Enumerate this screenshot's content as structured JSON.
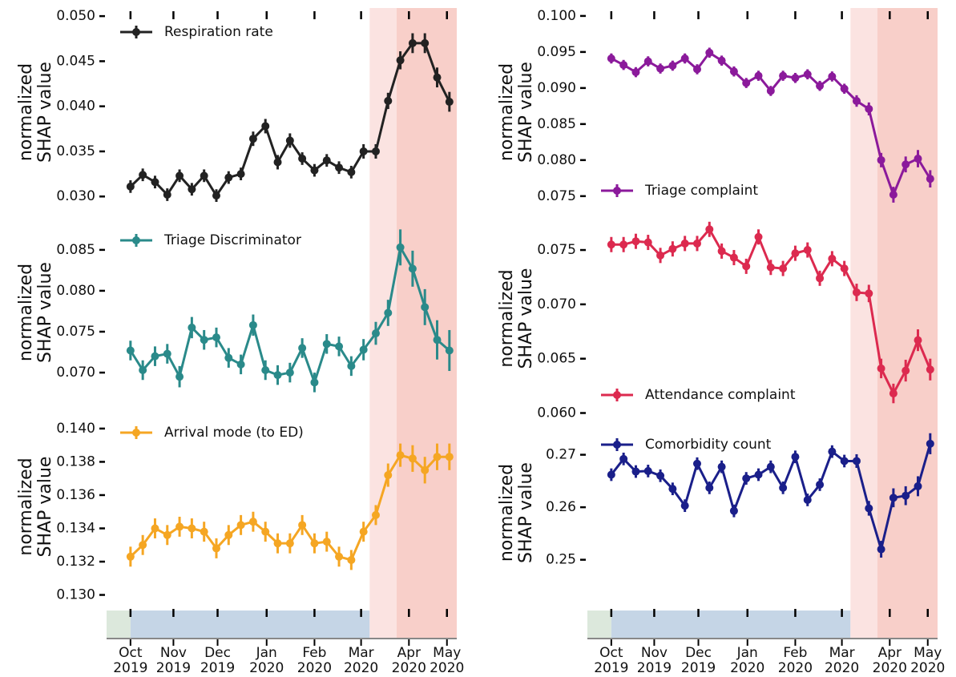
{
  "chart_data": [
    {
      "type": "line",
      "ylabel": "normalized SHAP value",
      "legend": "upper left",
      "x": [
        0,
        1,
        2,
        3,
        4,
        5,
        6,
        7,
        8,
        9,
        10,
        11,
        12,
        13,
        14,
        15,
        16,
        17,
        18,
        19,
        20,
        21,
        22,
        23,
        24,
        25,
        26
      ],
      "ylim": [
        0.0278,
        0.0509
      ],
      "yticks": [
        {
          "value": 0.03,
          "label": "0.030"
        },
        0.035,
        {
          "value": 0.04,
          "label": "0.040"
        },
        0.045,
        {
          "value": 0.05,
          "label": "0.050"
        }
      ],
      "series": [
        {
          "name": "Respiration rate",
          "color": "#222222",
          "values": [
            0.0311,
            0.0324,
            0.0316,
            0.0302,
            0.0323,
            0.0308,
            0.0323,
            0.0301,
            0.0321,
            0.0325,
            0.0364,
            0.0378,
            0.0338,
            0.0362,
            0.0342,
            0.0329,
            0.034,
            0.0332,
            0.0327,
            0.035,
            0.035,
            0.0406,
            0.0451,
            0.047,
            0.047,
            0.0432,
            0.0405
          ],
          "errors": [
            0.0007,
            0.0007,
            0.0007,
            0.0007,
            0.0007,
            0.0007,
            0.0007,
            0.0007,
            0.0007,
            0.0007,
            0.0008,
            0.0008,
            0.0008,
            0.0008,
            0.0007,
            0.0007,
            0.0007,
            0.0007,
            0.0007,
            0.0008,
            0.0008,
            0.0009,
            0.001,
            0.0011,
            0.0011,
            0.0011,
            0.0011
          ]
        }
      ]
    },
    {
      "type": "line",
      "ylabel": "normalized SHAP value",
      "legend": "upper left",
      "x": [
        0,
        1,
        2,
        3,
        4,
        5,
        6,
        7,
        8,
        9,
        10,
        11,
        12,
        13,
        14,
        15,
        16,
        17,
        18,
        19,
        20,
        21,
        22,
        23,
        24,
        25,
        26
      ],
      "ylim": [
        0.0656,
        0.0891
      ],
      "yticks": [
        {
          "value": 0.07,
          "label": "0.070"
        },
        0.075,
        {
          "value": 0.08,
          "label": "0.080"
        },
        0.085
      ],
      "series": [
        {
          "name": "Triage Discriminator",
          "color": "#2a8a8a",
          "values": [
            0.0727,
            0.0703,
            0.072,
            0.0723,
            0.0695,
            0.0755,
            0.074,
            0.0743,
            0.0718,
            0.071,
            0.0758,
            0.0703,
            0.0697,
            0.07,
            0.073,
            0.0688,
            0.0735,
            0.0732,
            0.0708,
            0.0728,
            0.0748,
            0.0773,
            0.0853,
            0.0827,
            0.078,
            0.074,
            0.0727
          ],
          "errors": [
            0.0012,
            0.0012,
            0.0012,
            0.0012,
            0.0013,
            0.0013,
            0.0012,
            0.0012,
            0.0012,
            0.0012,
            0.0013,
            0.0012,
            0.0012,
            0.0012,
            0.0012,
            0.0012,
            0.0012,
            0.0012,
            0.0012,
            0.0013,
            0.0014,
            0.0016,
            0.0022,
            0.0022,
            0.0022,
            0.0024,
            0.0025
          ]
        }
      ]
    },
    {
      "type": "line",
      "ylabel": "normalized SHAP value",
      "legend": "upper left",
      "x": [
        0,
        1,
        2,
        3,
        4,
        5,
        6,
        7,
        8,
        9,
        10,
        11,
        12,
        13,
        14,
        15,
        16,
        17,
        18,
        19,
        20,
        21,
        22,
        23,
        24,
        25,
        26
      ],
      "xlim": [
        -1.95,
        26.6
      ],
      "xticks": [
        {
          "value": 0,
          "label": "Oct 2019"
        },
        {
          "value": 3.5,
          "label": "Nov 2019"
        },
        {
          "value": 7.1,
          "label": "Dec 2019"
        },
        {
          "value": 11.1,
          "label": "Jan 2020"
        },
        {
          "value": 15,
          "label": "Feb 2020"
        },
        {
          "value": 18.8,
          "label": "Mar 2020"
        },
        {
          "value": 22.7,
          "label": "Apr 2020"
        },
        {
          "value": 25.8,
          "label": "May 2020"
        }
      ],
      "periods": [
        {
          "start": -1.95,
          "end": 0,
          "color": "#dce8dc"
        },
        {
          "start": 0,
          "end": 19.5,
          "color": "#c5d5e6"
        },
        {
          "start": 19.5,
          "end": 21.7,
          "color": "#fbe3e1"
        },
        {
          "start": 21.7,
          "end": 26.6,
          "color": "#f8cfc9"
        }
      ],
      "ylim": [
        0.1294,
        0.1412
      ],
      "yticks": [
        {
          "value": 0.13,
          "label": "0.130"
        },
        0.132,
        0.134,
        0.136,
        0.138,
        {
          "value": 0.14,
          "label": "0.140"
        }
      ],
      "series": [
        {
          "name": "Arrival mode (to ED)",
          "color": "#f5a623",
          "values": [
            0.1323,
            0.133,
            0.134,
            0.1336,
            0.1341,
            0.134,
            0.1338,
            0.1328,
            0.1336,
            0.1342,
            0.1344,
            0.1338,
            0.1331,
            0.1331,
            0.1342,
            0.1331,
            0.1332,
            0.1323,
            0.1321,
            0.1338,
            0.1348,
            0.1372,
            0.1384,
            0.1382,
            0.1375,
            0.1383,
            0.1383
          ],
          "errors": [
            0.0006,
            0.0006,
            0.0006,
            0.0006,
            0.0006,
            0.0006,
            0.0006,
            0.0006,
            0.0006,
            0.0006,
            0.0006,
            0.0006,
            0.0006,
            0.0006,
            0.0006,
            0.0006,
            0.0006,
            0.0006,
            0.0006,
            0.0006,
            0.0006,
            0.0007,
            0.0007,
            0.0008,
            0.0008,
            0.0008,
            0.0008
          ]
        }
      ]
    },
    {
      "type": "line",
      "ylabel": "normalized SHAP value",
      "legend": "lower left",
      "x": [
        0,
        1,
        2,
        3,
        4,
        5,
        6,
        7,
        8,
        9,
        10,
        11,
        12,
        13,
        14,
        15,
        16,
        17,
        18,
        19,
        20,
        21,
        22,
        23,
        24,
        25,
        26
      ],
      "ylim": [
        0.0722,
        0.1011
      ],
      "yticks": [
        0.075,
        {
          "value": 0.08,
          "label": "0.080"
        },
        0.085,
        {
          "value": 0.09,
          "label": "0.090"
        },
        0.095,
        {
          "value": 0.1,
          "label": "0.100"
        }
      ],
      "series": [
        {
          "name": "Triage complaint",
          "color": "#8b1a9b",
          "values": [
            0.0941,
            0.0932,
            0.0922,
            0.0937,
            0.0927,
            0.0931,
            0.0941,
            0.0926,
            0.0949,
            0.0938,
            0.0923,
            0.0907,
            0.0917,
            0.0896,
            0.0917,
            0.0914,
            0.0919,
            0.0903,
            0.0916,
            0.0899,
            0.0882,
            0.0871,
            0.08,
            0.0752,
            0.0794,
            0.0802,
            0.0774
          ],
          "errors": [
            0.0007,
            0.0007,
            0.0007,
            0.0007,
            0.0007,
            0.0007,
            0.0007,
            0.0007,
            0.0007,
            0.0007,
            0.0007,
            0.0007,
            0.0007,
            0.0007,
            0.0007,
            0.0007,
            0.0007,
            0.0007,
            0.0007,
            0.0007,
            0.0008,
            0.0009,
            0.001,
            0.0011,
            0.0011,
            0.0012,
            0.0012
          ]
        }
      ]
    },
    {
      "type": "line",
      "ylabel": "normalized SHAP value",
      "legend": "lower left",
      "x": [
        0,
        1,
        2,
        3,
        4,
        5,
        6,
        7,
        8,
        9,
        10,
        11,
        12,
        13,
        14,
        15,
        16,
        17,
        18,
        19,
        20,
        21,
        22,
        23,
        24,
        25,
        26
      ],
      "ylim": [
        0.0593,
        0.0781
      ],
      "yticks": [
        {
          "value": 0.06,
          "label": "0.060"
        },
        0.065,
        {
          "value": 0.07,
          "label": "0.070"
        },
        0.075
      ],
      "series": [
        {
          "name": "Attendance complaint",
          "color": "#dc2a4f",
          "values": [
            0.0755,
            0.0755,
            0.0758,
            0.0757,
            0.0745,
            0.0751,
            0.0756,
            0.0756,
            0.0769,
            0.0749,
            0.0743,
            0.0735,
            0.0762,
            0.0734,
            0.0733,
            0.0747,
            0.075,
            0.0724,
            0.0742,
            0.0733,
            0.0711,
            0.071,
            0.0641,
            0.0618,
            0.0639,
            0.0667,
            0.064
          ],
          "errors": [
            0.0007,
            0.0007,
            0.0007,
            0.0007,
            0.0007,
            0.0007,
            0.0007,
            0.0007,
            0.0007,
            0.0007,
            0.0007,
            0.0007,
            0.0007,
            0.0007,
            0.0007,
            0.0007,
            0.0007,
            0.0007,
            0.0007,
            0.0007,
            0.0008,
            0.0008,
            0.0009,
            0.0009,
            0.001,
            0.001,
            0.001
          ]
        }
      ]
    },
    {
      "type": "line",
      "ylabel": "normalized SHAP value",
      "legend": "upper left",
      "x": [
        0,
        1,
        2,
        3,
        4,
        5,
        6,
        7,
        8,
        9,
        10,
        11,
        12,
        13,
        14,
        15,
        16,
        17,
        18,
        19,
        20,
        21,
        22,
        23,
        24,
        25,
        26
      ],
      "xlim": [
        -1.95,
        26.6
      ],
      "xticks": [
        {
          "value": 0,
          "label": "Oct 2019"
        },
        {
          "value": 3.5,
          "label": "Nov 2019"
        },
        {
          "value": 7.1,
          "label": "Dec 2019"
        },
        {
          "value": 11.1,
          "label": "Jan 2020"
        },
        {
          "value": 15,
          "label": "Feb 2020"
        },
        {
          "value": 18.8,
          "label": "Mar 2020"
        },
        {
          "value": 22.7,
          "label": "Apr 2020"
        },
        {
          "value": 25.8,
          "label": "May 2020"
        }
      ],
      "periods": [
        {
          "start": -1.95,
          "end": 0,
          "color": "#dce8dc"
        },
        {
          "start": 0,
          "end": 19.5,
          "color": "#c5d5e6"
        },
        {
          "start": 19.5,
          "end": 21.7,
          "color": "#fbe3e1"
        },
        {
          "start": 21.7,
          "end": 26.6,
          "color": "#f8cfc9"
        }
      ],
      "ylim": [
        0.2414,
        0.2765
      ],
      "yticks": [
        0.25,
        0.26,
        0.27
      ],
      "series": [
        {
          "name": "Comorbidity count",
          "color": "#1a1f8a",
          "values": [
            0.2662,
            0.2692,
            0.2668,
            0.2669,
            0.266,
            0.2635,
            0.2603,
            0.2683,
            0.2637,
            0.2677,
            0.2593,
            0.2655,
            0.2662,
            0.2677,
            0.2637,
            0.2696,
            0.2614,
            0.2643,
            0.2706,
            0.2688,
            0.2688,
            0.2598,
            0.252,
            0.2618,
            0.2622,
            0.264,
            0.2721
          ],
          "errors": [
            0.0012,
            0.0012,
            0.0012,
            0.0012,
            0.0012,
            0.0012,
            0.0012,
            0.0012,
            0.0012,
            0.0012,
            0.0012,
            0.0012,
            0.0012,
            0.0012,
            0.0012,
            0.0012,
            0.0012,
            0.0012,
            0.0012,
            0.0012,
            0.0013,
            0.0014,
            0.0016,
            0.0018,
            0.0018,
            0.0019,
            0.002
          ]
        }
      ]
    }
  ]
}
